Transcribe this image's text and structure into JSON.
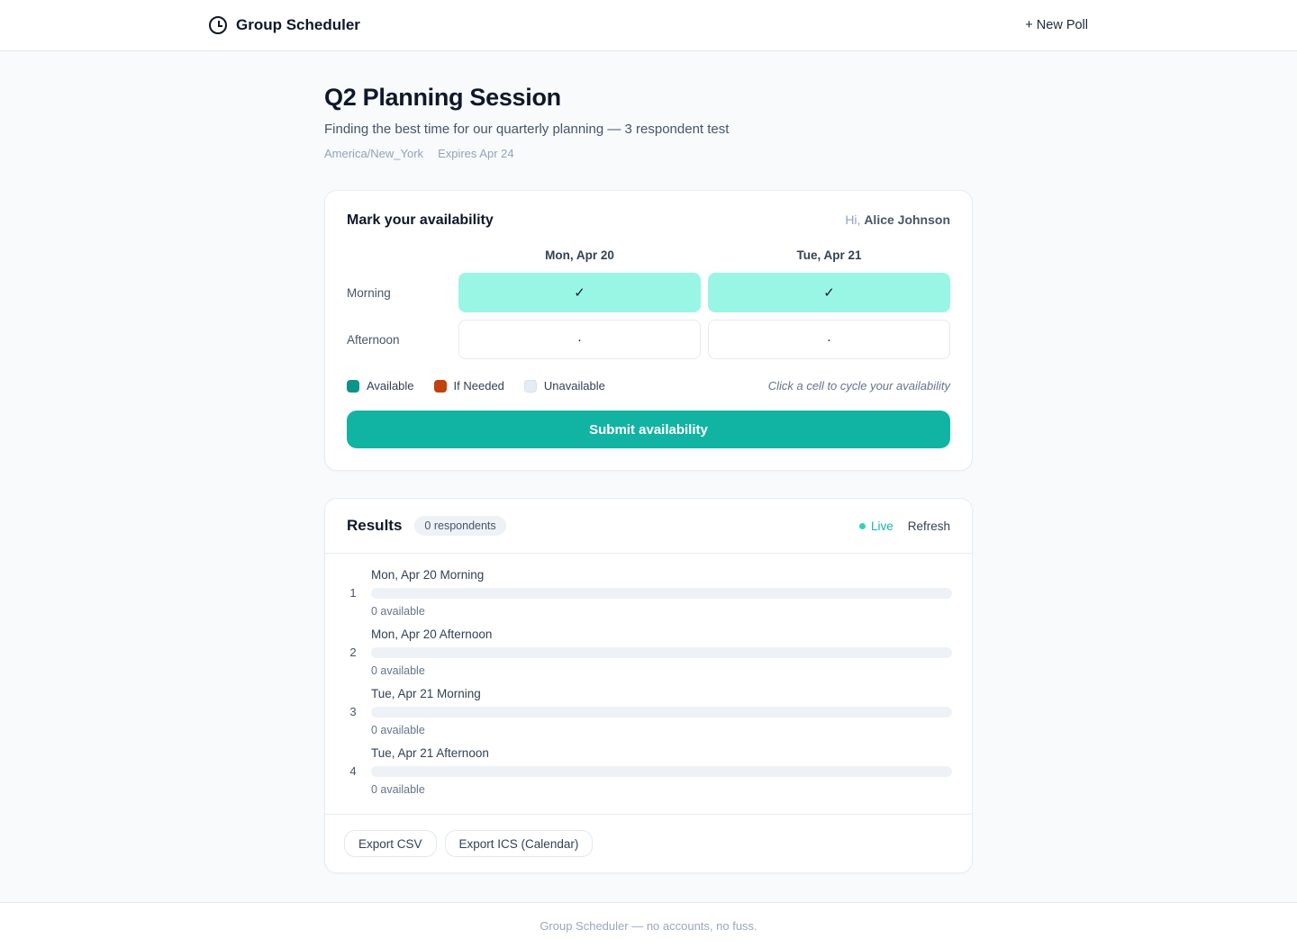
{
  "header": {
    "app_title": "Group Scheduler",
    "new_poll_label": "+ New Poll"
  },
  "poll": {
    "title": "Q2 Planning Session",
    "description": "Finding the best time for our quarterly planning — 3 respondent test",
    "timezone": "America/New_York",
    "expires": "Expires Apr 24"
  },
  "availability": {
    "heading": "Mark your availability",
    "greeting_prefix": "Hi, ",
    "user_name": "Alice Johnson",
    "columns": [
      "Mon, Apr 20",
      "Tue, Apr 21"
    ],
    "rows": [
      {
        "label": "Morning",
        "cells": [
          {
            "state": "available",
            "glyph": "✓"
          },
          {
            "state": "available",
            "glyph": "✓"
          }
        ]
      },
      {
        "label": "Afternoon",
        "cells": [
          {
            "state": "unavailable",
            "glyph": "·"
          },
          {
            "state": "unavailable",
            "glyph": "·"
          }
        ]
      }
    ],
    "legend": [
      {
        "label": "Available",
        "color": "#0d9488",
        "border": "#0d9488"
      },
      {
        "label": "If Needed",
        "color": "#c2410c",
        "border": "#c2410c"
      },
      {
        "label": "Unavailable",
        "color": "#e6ecf3",
        "border": "#d7dfe9"
      }
    ],
    "hint": "Click a cell to cycle your availability",
    "submit_label": "Submit availability"
  },
  "results": {
    "heading": "Results",
    "respondents_badge": "0 respondents",
    "live_label": "Live",
    "refresh_label": "Refresh",
    "slots": [
      {
        "rank": "1",
        "label": "Mon, Apr 20 Morning",
        "available": "0 available",
        "fill_pct": 0
      },
      {
        "rank": "2",
        "label": "Mon, Apr 20 Afternoon",
        "available": "0 available",
        "fill_pct": 0
      },
      {
        "rank": "3",
        "label": "Tue, Apr 21 Morning",
        "available": "0 available",
        "fill_pct": 0
      },
      {
        "rank": "4",
        "label": "Tue, Apr 21 Afternoon",
        "available": "0 available",
        "fill_pct": 0
      }
    ],
    "export_csv_label": "Export CSV",
    "export_ics_label": "Export ICS (Calendar)"
  },
  "footer": {
    "text": "Group Scheduler — no accounts, no fuss."
  },
  "colors": {
    "accent": "#14b8a6",
    "cell_available_bg": "#99f6e4",
    "submit_bg": "#11b4a2"
  }
}
